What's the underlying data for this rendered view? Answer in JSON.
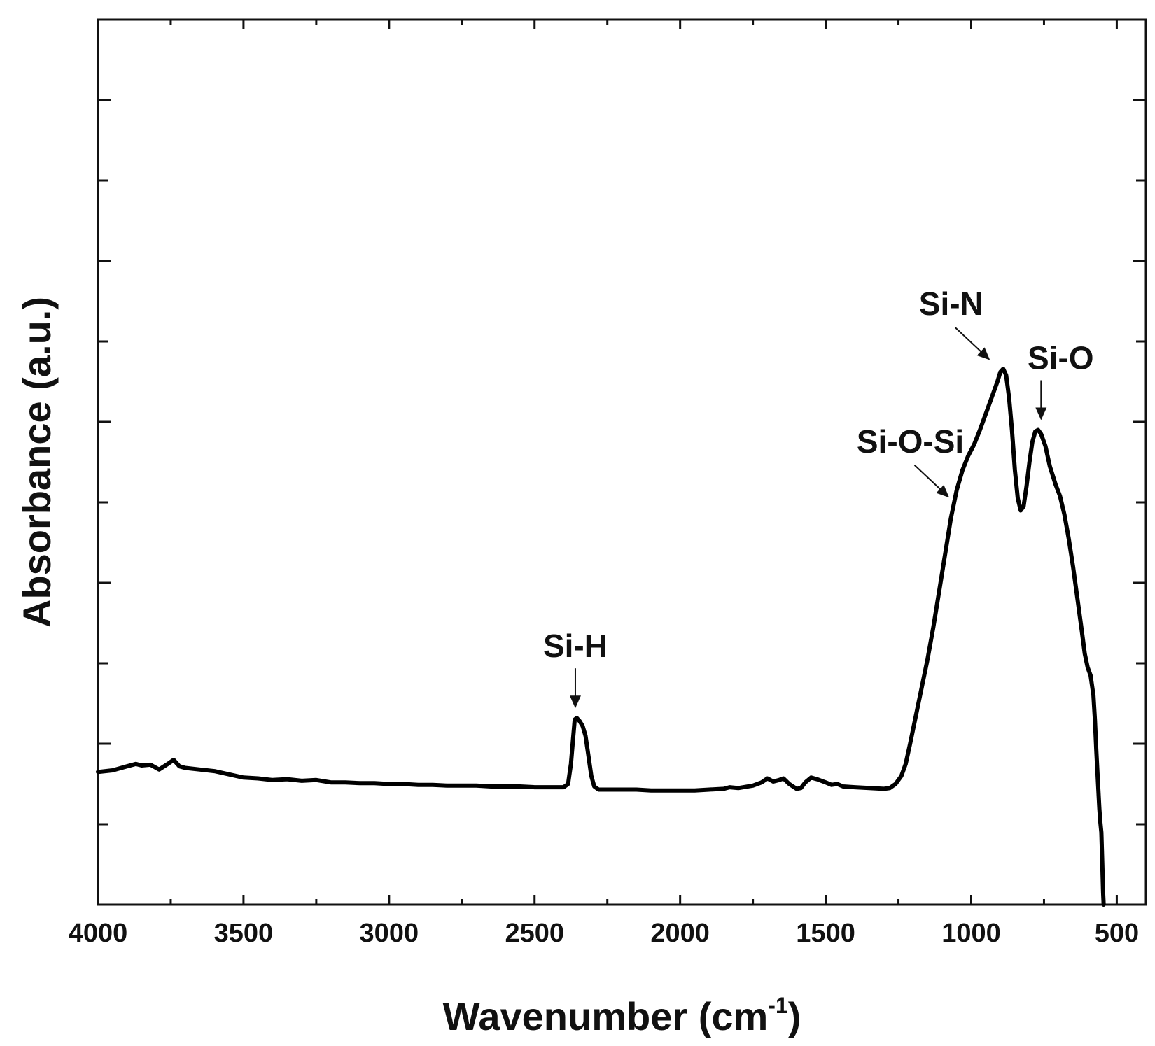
{
  "chart_data": {
    "type": "line",
    "xlabel": "Wavenumber (cm",
    "xlabel_sup": "-1",
    "xlabel_end": ")",
    "ylabel": "Absorbance (a.u.)",
    "xlim": [
      4000,
      400
    ],
    "x_reversed": true,
    "ylim": [
      0,
      11
    ],
    "y_ticks_unlabeled": [
      1,
      2,
      3,
      4,
      5,
      6,
      7,
      8,
      9,
      10
    ],
    "x_ticks": [
      4000,
      3500,
      3000,
      2500,
      2000,
      1500,
      1000,
      500
    ],
    "x_tick_labels": [
      "4000",
      "3500",
      "3000",
      "2500",
      "2000",
      "1500",
      "1000",
      "500"
    ],
    "grid": false,
    "series": [
      {
        "color": "#000000",
        "points": [
          [
            4000,
            1.65
          ],
          [
            3950,
            1.67
          ],
          [
            3900,
            1.72
          ],
          [
            3870,
            1.75
          ],
          [
            3850,
            1.73
          ],
          [
            3820,
            1.74
          ],
          [
            3790,
            1.68
          ],
          [
            3760,
            1.75
          ],
          [
            3740,
            1.8
          ],
          [
            3720,
            1.72
          ],
          [
            3700,
            1.7
          ],
          [
            3650,
            1.68
          ],
          [
            3600,
            1.66
          ],
          [
            3550,
            1.62
          ],
          [
            3500,
            1.58
          ],
          [
            3450,
            1.57
          ],
          [
            3400,
            1.55
          ],
          [
            3350,
            1.56
          ],
          [
            3300,
            1.54
          ],
          [
            3250,
            1.55
          ],
          [
            3200,
            1.52
          ],
          [
            3150,
            1.52
          ],
          [
            3100,
            1.51
          ],
          [
            3050,
            1.51
          ],
          [
            3000,
            1.5
          ],
          [
            2950,
            1.5
          ],
          [
            2900,
            1.49
          ],
          [
            2850,
            1.49
          ],
          [
            2800,
            1.48
          ],
          [
            2750,
            1.48
          ],
          [
            2700,
            1.48
          ],
          [
            2650,
            1.47
          ],
          [
            2600,
            1.47
          ],
          [
            2550,
            1.47
          ],
          [
            2500,
            1.46
          ],
          [
            2450,
            1.46
          ],
          [
            2400,
            1.46
          ],
          [
            2385,
            1.5
          ],
          [
            2375,
            1.75
          ],
          [
            2368,
            2.05
          ],
          [
            2362,
            2.3
          ],
          [
            2355,
            2.32
          ],
          [
            2345,
            2.28
          ],
          [
            2335,
            2.22
          ],
          [
            2325,
            2.1
          ],
          [
            2315,
            1.85
          ],
          [
            2305,
            1.6
          ],
          [
            2295,
            1.47
          ],
          [
            2280,
            1.43
          ],
          [
            2250,
            1.43
          ],
          [
            2200,
            1.43
          ],
          [
            2150,
            1.43
          ],
          [
            2100,
            1.42
          ],
          [
            2050,
            1.42
          ],
          [
            2000,
            1.42
          ],
          [
            1950,
            1.42
          ],
          [
            1900,
            1.43
          ],
          [
            1850,
            1.44
          ],
          [
            1830,
            1.46
          ],
          [
            1800,
            1.45
          ],
          [
            1750,
            1.48
          ],
          [
            1720,
            1.52
          ],
          [
            1700,
            1.57
          ],
          [
            1680,
            1.53
          ],
          [
            1660,
            1.55
          ],
          [
            1645,
            1.57
          ],
          [
            1625,
            1.5
          ],
          [
            1600,
            1.44
          ],
          [
            1585,
            1.45
          ],
          [
            1570,
            1.52
          ],
          [
            1550,
            1.58
          ],
          [
            1530,
            1.56
          ],
          [
            1500,
            1.52
          ],
          [
            1480,
            1.49
          ],
          [
            1460,
            1.5
          ],
          [
            1440,
            1.47
          ],
          [
            1400,
            1.46
          ],
          [
            1350,
            1.45
          ],
          [
            1300,
            1.44
          ],
          [
            1280,
            1.45
          ],
          [
            1260,
            1.5
          ],
          [
            1240,
            1.6
          ],
          [
            1225,
            1.75
          ],
          [
            1210,
            2.0
          ],
          [
            1190,
            2.35
          ],
          [
            1170,
            2.7
          ],
          [
            1150,
            3.05
          ],
          [
            1130,
            3.45
          ],
          [
            1110,
            3.9
          ],
          [
            1090,
            4.35
          ],
          [
            1070,
            4.8
          ],
          [
            1050,
            5.15
          ],
          [
            1030,
            5.4
          ],
          [
            1010,
            5.58
          ],
          [
            990,
            5.72
          ],
          [
            970,
            5.9
          ],
          [
            950,
            6.1
          ],
          [
            930,
            6.3
          ],
          [
            910,
            6.5
          ],
          [
            900,
            6.62
          ],
          [
            890,
            6.66
          ],
          [
            880,
            6.58
          ],
          [
            870,
            6.3
          ],
          [
            860,
            5.9
          ],
          [
            850,
            5.4
          ],
          [
            840,
            5.05
          ],
          [
            830,
            4.9
          ],
          [
            820,
            4.95
          ],
          [
            810,
            5.2
          ],
          [
            800,
            5.5
          ],
          [
            790,
            5.75
          ],
          [
            780,
            5.88
          ],
          [
            770,
            5.9
          ],
          [
            760,
            5.85
          ],
          [
            745,
            5.7
          ],
          [
            730,
            5.45
          ],
          [
            710,
            5.22
          ],
          [
            695,
            5.08
          ],
          [
            680,
            4.85
          ],
          [
            665,
            4.55
          ],
          [
            650,
            4.2
          ],
          [
            635,
            3.8
          ],
          [
            620,
            3.4
          ],
          [
            610,
            3.12
          ],
          [
            600,
            2.95
          ],
          [
            590,
            2.85
          ],
          [
            580,
            2.6
          ],
          [
            575,
            2.3
          ],
          [
            570,
            1.9
          ],
          [
            565,
            1.55
          ],
          [
            560,
            1.2
          ],
          [
            557,
            1.05
          ],
          [
            553,
            0.9
          ],
          [
            550,
            0.55
          ],
          [
            547,
            0.15
          ],
          [
            545,
            0.0
          ]
        ]
      }
    ],
    "annotations": [
      {
        "label": "Si-H",
        "x": 2360,
        "y": 2.32,
        "arrow": "down"
      },
      {
        "label": "Si-O-Si",
        "x": 1060,
        "y": 4.95,
        "arrow": "diagonal-down-right"
      },
      {
        "label": "Si-N",
        "x": 920,
        "y": 6.66,
        "arrow": "diagonal-down-right"
      },
      {
        "label": "Si-O",
        "x": 760,
        "y": 5.9,
        "arrow": "down"
      }
    ]
  }
}
